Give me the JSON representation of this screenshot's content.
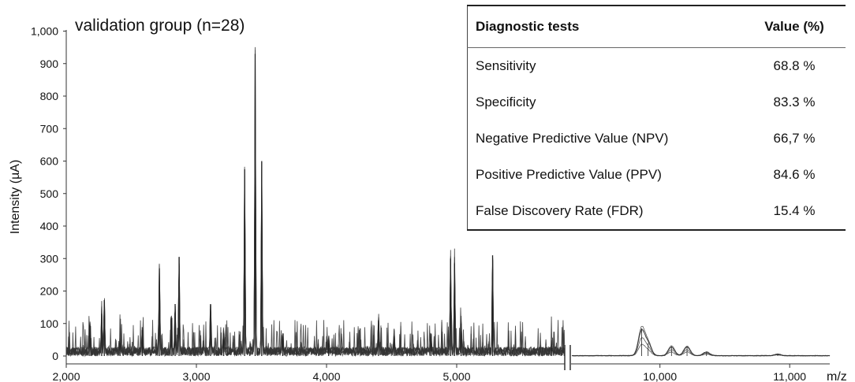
{
  "chart_data": {
    "type": "line",
    "title": "validation group (n=28)",
    "ylabel": "Intensity (µA)",
    "xlabel": "m/z",
    "ylim": [
      0,
      1000
    ],
    "y_ticks": [
      "0",
      "100",
      "200",
      "300",
      "400",
      "500",
      "600",
      "700",
      "800",
      "900",
      "1,000"
    ],
    "x_ticks": [
      "2,000",
      "3,000",
      "4,000",
      "5,000",
      "10,000",
      "11,000"
    ],
    "axis_break": "between 5,000 and 10,000",
    "peaks_segment1": [
      {
        "x": 2180,
        "y": 95
      },
      {
        "x": 2270,
        "y": 130
      },
      {
        "x": 2290,
        "y": 172
      },
      {
        "x": 2410,
        "y": 40
      },
      {
        "x": 2580,
        "y": 80
      },
      {
        "x": 2710,
        "y": 270
      },
      {
        "x": 2800,
        "y": 120
      },
      {
        "x": 2830,
        "y": 160
      },
      {
        "x": 2860,
        "y": 305
      },
      {
        "x": 3100,
        "y": 160
      },
      {
        "x": 3200,
        "y": 70
      },
      {
        "x": 3360,
        "y": 575
      },
      {
        "x": 3440,
        "y": 930
      },
      {
        "x": 3490,
        "y": 600
      },
      {
        "x": 3650,
        "y": 60
      },
      {
        "x": 4000,
        "y": 40
      },
      {
        "x": 4380,
        "y": 110
      },
      {
        "x": 4500,
        "y": 60
      },
      {
        "x": 4780,
        "y": 60
      },
      {
        "x": 4930,
        "y": 300
      },
      {
        "x": 4960,
        "y": 285
      },
      {
        "x": 5010,
        "y": 100
      },
      {
        "x": 5250,
        "y": 310
      },
      {
        "x": 5700,
        "y": 25
      }
    ],
    "peaks_segment2": [
      {
        "x": 9950,
        "y": 85
      },
      {
        "x": 10000,
        "y": 40
      },
      {
        "x": 10180,
        "y": 30
      },
      {
        "x": 10300,
        "y": 30
      },
      {
        "x": 10450,
        "y": 12
      },
      {
        "x": 11000,
        "y": 5
      }
    ]
  },
  "table": {
    "header": {
      "test": "Diagnostic tests",
      "value": "Value (%)"
    },
    "rows": [
      {
        "test": "Sensitivity",
        "value": "68.8 %"
      },
      {
        "test": "Specificity",
        "value": "83.3 %"
      },
      {
        "test": "Negative Predictive Value (NPV)",
        "value": "66,7 %"
      },
      {
        "test": "Positive Predictive Value (PPV)",
        "value": "84.6 %"
      },
      {
        "test": "False Discovery Rate (FDR)",
        "value": "15.4 %"
      }
    ]
  }
}
